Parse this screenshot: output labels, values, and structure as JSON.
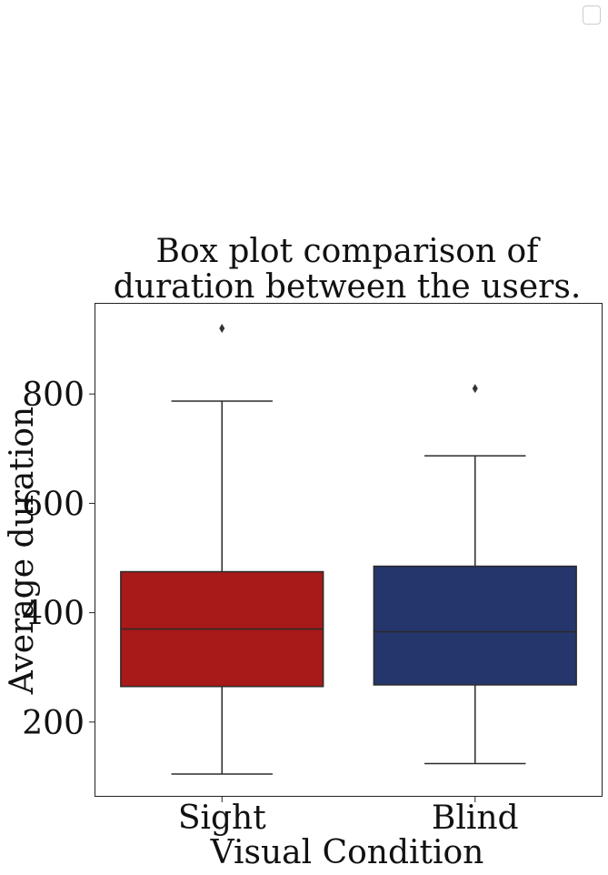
{
  "chart_data": {
    "type": "box",
    "title": [
      "Box plot comparison of",
      "duration between the users."
    ],
    "xlabel": "Visual Condition",
    "ylabel": "Average duration",
    "ylim": [
      65,
      965
    ],
    "yticks": [
      200,
      400,
      600,
      800
    ],
    "ytick_labels": [
      "200",
      "400",
      "600",
      "800"
    ],
    "grid": false,
    "legend": "top-right, empty",
    "categories": [
      "Sight",
      "Blind"
    ],
    "series": [
      {
        "category": "Sight",
        "color": "#a81919",
        "whisker_low": 105,
        "q1": 265,
        "median": 370,
        "q3": 475,
        "whisker_high": 787,
        "outliers": [
          920
        ]
      },
      {
        "category": "Blind",
        "color": "#25366c",
        "whisker_low": 124,
        "q1": 268,
        "median": 365,
        "q3": 485,
        "whisker_high": 687,
        "outliers": [
          810
        ]
      }
    ]
  }
}
